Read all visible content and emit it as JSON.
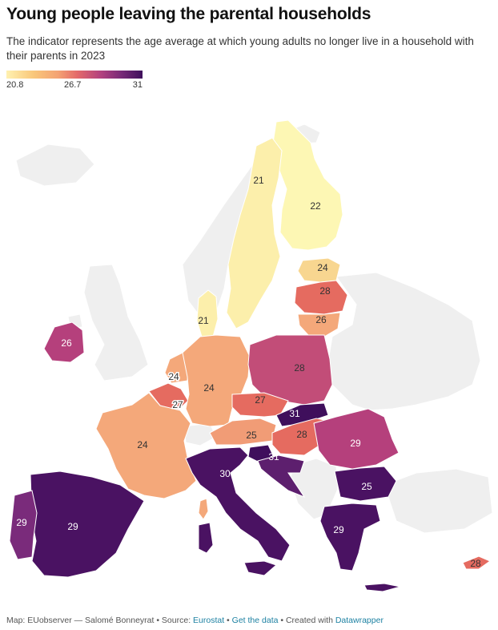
{
  "title": "Young people leaving the parental households",
  "subtitle": "The indicator represents the age average at which young adults no longer live in a household with their parents in 2023",
  "legend": {
    "min": "20.8",
    "mid": "26.7",
    "max": "31"
  },
  "map_data": {
    "type": "choropleth",
    "region": "European Union",
    "year": "2023",
    "values": [
      {
        "country": "Finland",
        "value": "22"
      },
      {
        "country": "Sweden",
        "value": "21"
      },
      {
        "country": "Denmark",
        "value": "21"
      },
      {
        "country": "Estonia",
        "value": "24"
      },
      {
        "country": "Latvia",
        "value": "28"
      },
      {
        "country": "Lithuania",
        "value": "26"
      },
      {
        "country": "Ireland",
        "value": "26"
      },
      {
        "country": "Netherlands",
        "value": "24"
      },
      {
        "country": "Belgium",
        "value": "27"
      },
      {
        "country": "Germany",
        "value": "24"
      },
      {
        "country": "Poland",
        "value": "28"
      },
      {
        "country": "Czechia",
        "value": "27"
      },
      {
        "country": "Slovakia",
        "value": "31"
      },
      {
        "country": "Austria",
        "value": "25"
      },
      {
        "country": "Hungary",
        "value": "28"
      },
      {
        "country": "Slovenia",
        "value": "31"
      },
      {
        "country": "France",
        "value": "24"
      },
      {
        "country": "Italy",
        "value": "30"
      },
      {
        "country": "Romania",
        "value": "29"
      },
      {
        "country": "Bulgaria",
        "value": "25"
      },
      {
        "country": "Greece",
        "value": "29"
      },
      {
        "country": "Spain",
        "value": "29"
      },
      {
        "country": "Portugal",
        "value": "29"
      },
      {
        "country": "Cyprus",
        "value": "28"
      }
    ]
  },
  "footer": {
    "prefix": "Map: EUobserver — Salomé Bonneyrat • Source: ",
    "source_link": "Eurostat",
    "sep1": " • ",
    "data_link": "Get the data",
    "sep2": " • Created with ",
    "tool_link": "Datawrapper"
  }
}
